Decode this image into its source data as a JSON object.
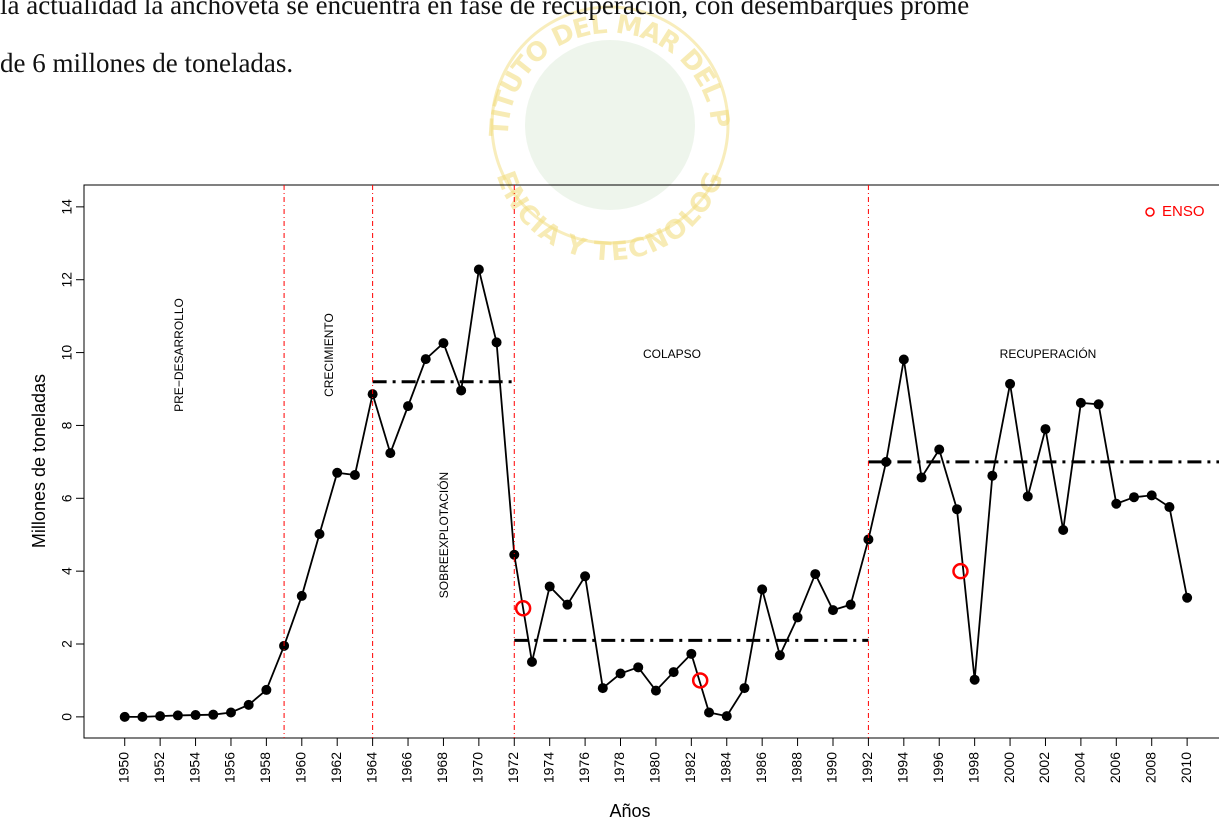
{
  "page_text": [
    "la actualidad la anchoveta se encuentra en fase de recuperación, con desembarques prome",
    "de 6 millones de toneladas."
  ],
  "watermark": {
    "top": "INSTITUTO DEL MAR DEL PERU",
    "bottom": "CIENCIA Y TECNOLOGIA"
  },
  "chart_data": {
    "type": "line",
    "x_label": "Años",
    "y_label": "Millones de toneladas",
    "x": [
      1950,
      1951,
      1952,
      1953,
      1954,
      1955,
      1956,
      1957,
      1958,
      1959,
      1960,
      1961,
      1962,
      1963,
      1964,
      1965,
      1966,
      1967,
      1968,
      1969,
      1970,
      1971,
      1972,
      1973,
      1974,
      1975,
      1976,
      1977,
      1978,
      1979,
      1980,
      1981,
      1982,
      1983,
      1984,
      1985,
      1986,
      1987,
      1988,
      1989,
      1990,
      1991,
      1992,
      1993,
      1994,
      1995,
      1996,
      1997,
      1998,
      1999,
      2000,
      2001,
      2002,
      2003,
      2004,
      2005,
      2006,
      2007,
      2008,
      2009,
      2010
    ],
    "values": [
      0,
      0,
      0.02,
      0.04,
      0.05,
      0.06,
      0.12,
      0.33,
      0.74,
      1.95,
      3.32,
      5.02,
      6.7,
      6.64,
      8.86,
      7.24,
      8.53,
      9.82,
      10.26,
      8.96,
      12.28,
      10.28,
      4.45,
      1.51,
      3.58,
      3.08,
      3.86,
      0.79,
      1.19,
      1.36,
      0.72,
      1.23,
      1.73,
      0.12,
      0.02,
      0.79,
      3.5,
      1.69,
      2.73,
      3.92,
      2.93,
      3.08,
      4.87,
      7.0,
      9.81,
      6.57,
      7.34,
      5.7,
      1.02,
      6.62,
      9.14,
      6.05,
      7.9,
      5.13,
      8.62,
      8.58,
      5.85,
      6.03,
      6.08,
      5.76,
      3.27
    ],
    "color": "#000000",
    "enso": {
      "name": "ENSO",
      "color": "#ff0000",
      "x": [
        1972.5,
        1982.5,
        1997.2
      ],
      "values": [
        2.98,
        1.0,
        4.0
      ]
    },
    "legend": "top-right",
    "period_lines": {
      "x": [
        1959,
        1964,
        1972,
        1992
      ],
      "color": "#ff0000"
    },
    "mean_lines": [
      {
        "x": [
          1964,
          1972
        ],
        "value": 9.2
      },
      {
        "x": [
          1972,
          1992
        ],
        "value": 2.1
      },
      {
        "x": [
          1992,
          2012
        ],
        "value": 7.0
      }
    ],
    "annotations": [
      "PRE−DESARROLLO",
      "CRECIMIENTO",
      "SOBREEXPLOTACIÓN",
      "COLAPSO",
      "RECUPERACIÓN"
    ],
    "xlim": [
      1947.7,
      2011.8
    ],
    "ylim": [
      -0.58,
      14.6
    ],
    "xticks": [
      1950,
      1952,
      1954,
      1956,
      1958,
      1960,
      1962,
      1964,
      1966,
      1968,
      1970,
      1972,
      1974,
      1976,
      1978,
      1980,
      1982,
      1984,
      1986,
      1988,
      1990,
      1992,
      1994,
      1996,
      1998,
      2000,
      2002,
      2004,
      2006,
      2008,
      2010
    ],
    "yticks": [
      0,
      2,
      4,
      6,
      8,
      10,
      12,
      14
    ]
  }
}
